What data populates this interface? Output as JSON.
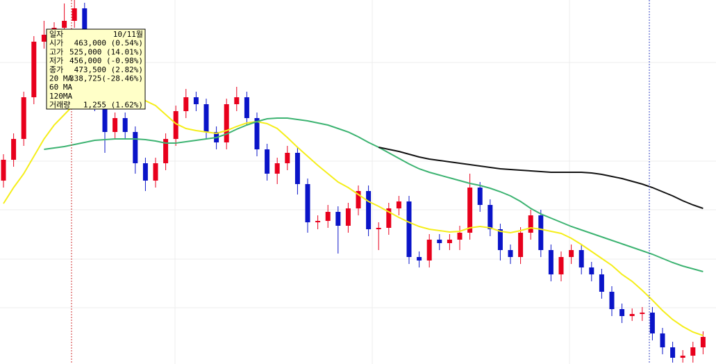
{
  "chart_data": {
    "type": "candlestick",
    "ylim": [
      26000,
      550000
    ],
    "up_color": "#e8001c",
    "down_color": "#0a14c8",
    "open": [
      290000,
      320000,
      350000,
      410000,
      490000,
      500000,
      510000,
      520000,
      538000,
      490000,
      400000,
      360000,
      380000,
      360000,
      315000,
      290000,
      315000,
      350000,
      390000,
      410000,
      400000,
      360000,
      345000,
      400000,
      410000,
      380000,
      335000,
      300000,
      315000,
      330000,
      285000,
      230000,
      232000,
      245000,
      225000,
      250000,
      275000,
      220000,
      222000,
      250000,
      260000,
      180000,
      175000,
      205000,
      200000,
      205000,
      215000,
      280000,
      255000,
      220000,
      190000,
      180000,
      215000,
      240000,
      190000,
      155000,
      180000,
      190000,
      165000,
      155000,
      130000,
      105000,
      95000,
      98000,
      100000,
      70000,
      50000,
      35000,
      38000,
      50000
    ],
    "high": [
      328000,
      358000,
      418000,
      498000,
      520000,
      518000,
      545000,
      550000,
      546000,
      498000,
      408000,
      388000,
      388000,
      368000,
      323000,
      323000,
      358000,
      398000,
      422000,
      418000,
      408000,
      368000,
      408000,
      425000,
      418000,
      388000,
      343000,
      323000,
      340000,
      338000,
      293000,
      240000,
      255000,
      253000,
      258000,
      283000,
      283000,
      230000,
      258000,
      268000,
      268000,
      188000,
      213000,
      213000,
      213000,
      225000,
      300000,
      288000,
      263000,
      228000,
      198000,
      223000,
      248000,
      248000,
      198000,
      188000,
      198000,
      198000,
      173000,
      163000,
      138000,
      113000,
      106000,
      108000,
      108000,
      78000,
      58000,
      46000,
      58000,
      73000
    ],
    "low": [
      280000,
      310000,
      340000,
      400000,
      480000,
      490000,
      500000,
      510000,
      480000,
      390000,
      330000,
      350000,
      350000,
      300000,
      275000,
      280000,
      305000,
      340000,
      380000,
      390000,
      350000,
      335000,
      335000,
      390000,
      370000,
      325000,
      290000,
      285000,
      305000,
      270000,
      215000,
      220000,
      222000,
      185000,
      215000,
      240000,
      210000,
      190000,
      212000,
      240000,
      170000,
      165000,
      165000,
      190000,
      190000,
      190000,
      205000,
      245000,
      210000,
      175000,
      170000,
      170000,
      205000,
      180000,
      145000,
      145000,
      170000,
      155000,
      145000,
      120000,
      95000,
      85000,
      88000,
      88000,
      60000,
      40000,
      28000,
      28000,
      28000,
      40000
    ],
    "close": [
      320000,
      350000,
      410000,
      490000,
      500000,
      510000,
      520000,
      538000,
      490000,
      400000,
      360000,
      380000,
      360000,
      315000,
      290000,
      315000,
      350000,
      390000,
      410000,
      400000,
      360000,
      345000,
      400000,
      410000,
      380000,
      335000,
      300000,
      315000,
      330000,
      285000,
      230000,
      232000,
      245000,
      225000,
      250000,
      275000,
      220000,
      222000,
      250000,
      260000,
      180000,
      175000,
      205000,
      200000,
      205000,
      215000,
      280000,
      255000,
      220000,
      190000,
      180000,
      215000,
      240000,
      190000,
      155000,
      180000,
      190000,
      165000,
      155000,
      130000,
      105000,
      95000,
      98000,
      100000,
      70000,
      50000,
      35000,
      38000,
      50000,
      65000
    ],
    "series": [
      {
        "name": "20 MA",
        "color": "#f5ee1a",
        "values": [
          257000,
          280000,
          300000,
          325000,
          350000,
          370000,
          385000,
          400000,
          410000,
          415000,
          415000,
          412000,
          410000,
          408000,
          405000,
          398000,
          385000,
          372000,
          365000,
          362000,
          360000,
          358000,
          362000,
          368000,
          373000,
          375000,
          372000,
          365000,
          352000,
          338000,
          325000,
          312000,
          300000,
          288000,
          280000,
          270000,
          260000,
          253000,
          245000,
          237000,
          230000,
          224000,
          220000,
          218000,
          216000,
          217000,
          222000,
          224000,
          222000,
          217000,
          215000,
          218000,
          222000,
          220000,
          217000,
          214000,
          207000,
          198000,
          188000,
          178000,
          168000,
          155000,
          145000,
          132000,
          118000,
          103000,
          90000,
          80000,
          72000,
          67000
        ]
      },
      {
        "name": "60 MA",
        "color": "#3cb371",
        "values": [
          null,
          null,
          null,
          null,
          335000,
          337000,
          339000,
          342000,
          345000,
          348000,
          349000,
          350000,
          350000,
          350000,
          349000,
          347000,
          344000,
          344000,
          346000,
          348000,
          350000,
          352000,
          357000,
          364000,
          370000,
          375000,
          379000,
          380000,
          380000,
          378000,
          376000,
          373000,
          370000,
          365000,
          360000,
          353000,
          345000,
          338000,
          330000,
          322000,
          314000,
          307000,
          302000,
          298000,
          294000,
          290000,
          286000,
          283000,
          279000,
          274000,
          268000,
          260000,
          250000,
          242000,
          236000,
          230000,
          224000,
          219000,
          214000,
          209000,
          204000,
          199000,
          194000,
          189000,
          184000,
          178000,
          172000,
          167000,
          163000,
          159000
        ]
      },
      {
        "name": "120MA",
        "color": "#111111",
        "values": [
          null,
          null,
          null,
          null,
          null,
          null,
          null,
          null,
          null,
          null,
          null,
          null,
          null,
          null,
          null,
          null,
          null,
          null,
          null,
          null,
          null,
          null,
          null,
          null,
          null,
          null,
          null,
          null,
          null,
          null,
          null,
          null,
          null,
          null,
          null,
          null,
          null,
          338000,
          335000,
          332000,
          328000,
          324000,
          321000,
          319000,
          317000,
          315000,
          313000,
          311000,
          309000,
          307000,
          306000,
          305000,
          304000,
          303000,
          302000,
          302000,
          302000,
          302000,
          301000,
          299000,
          296000,
          293000,
          289000,
          285000,
          280000,
          274000,
          268000,
          261000,
          255000,
          250000
        ]
      }
    ],
    "tooltip": {
      "rows": [
        [
          "일자",
          "10/11월"
        ],
        [
          "시가",
          "463,000 (0.54%)"
        ],
        [
          "고가",
          "525,000 (14.01%)"
        ],
        [
          "저가",
          "456,000 (-0.98%)"
        ],
        [
          "종가",
          "473,500 (2.82%)"
        ],
        [
          "20 MA",
          "338,725(-28.46%)"
        ],
        [
          "60 MA"
        ],
        [
          "120MA"
        ],
        [
          "거래량",
          "1,255 (1.62%)"
        ]
      ]
    }
  }
}
